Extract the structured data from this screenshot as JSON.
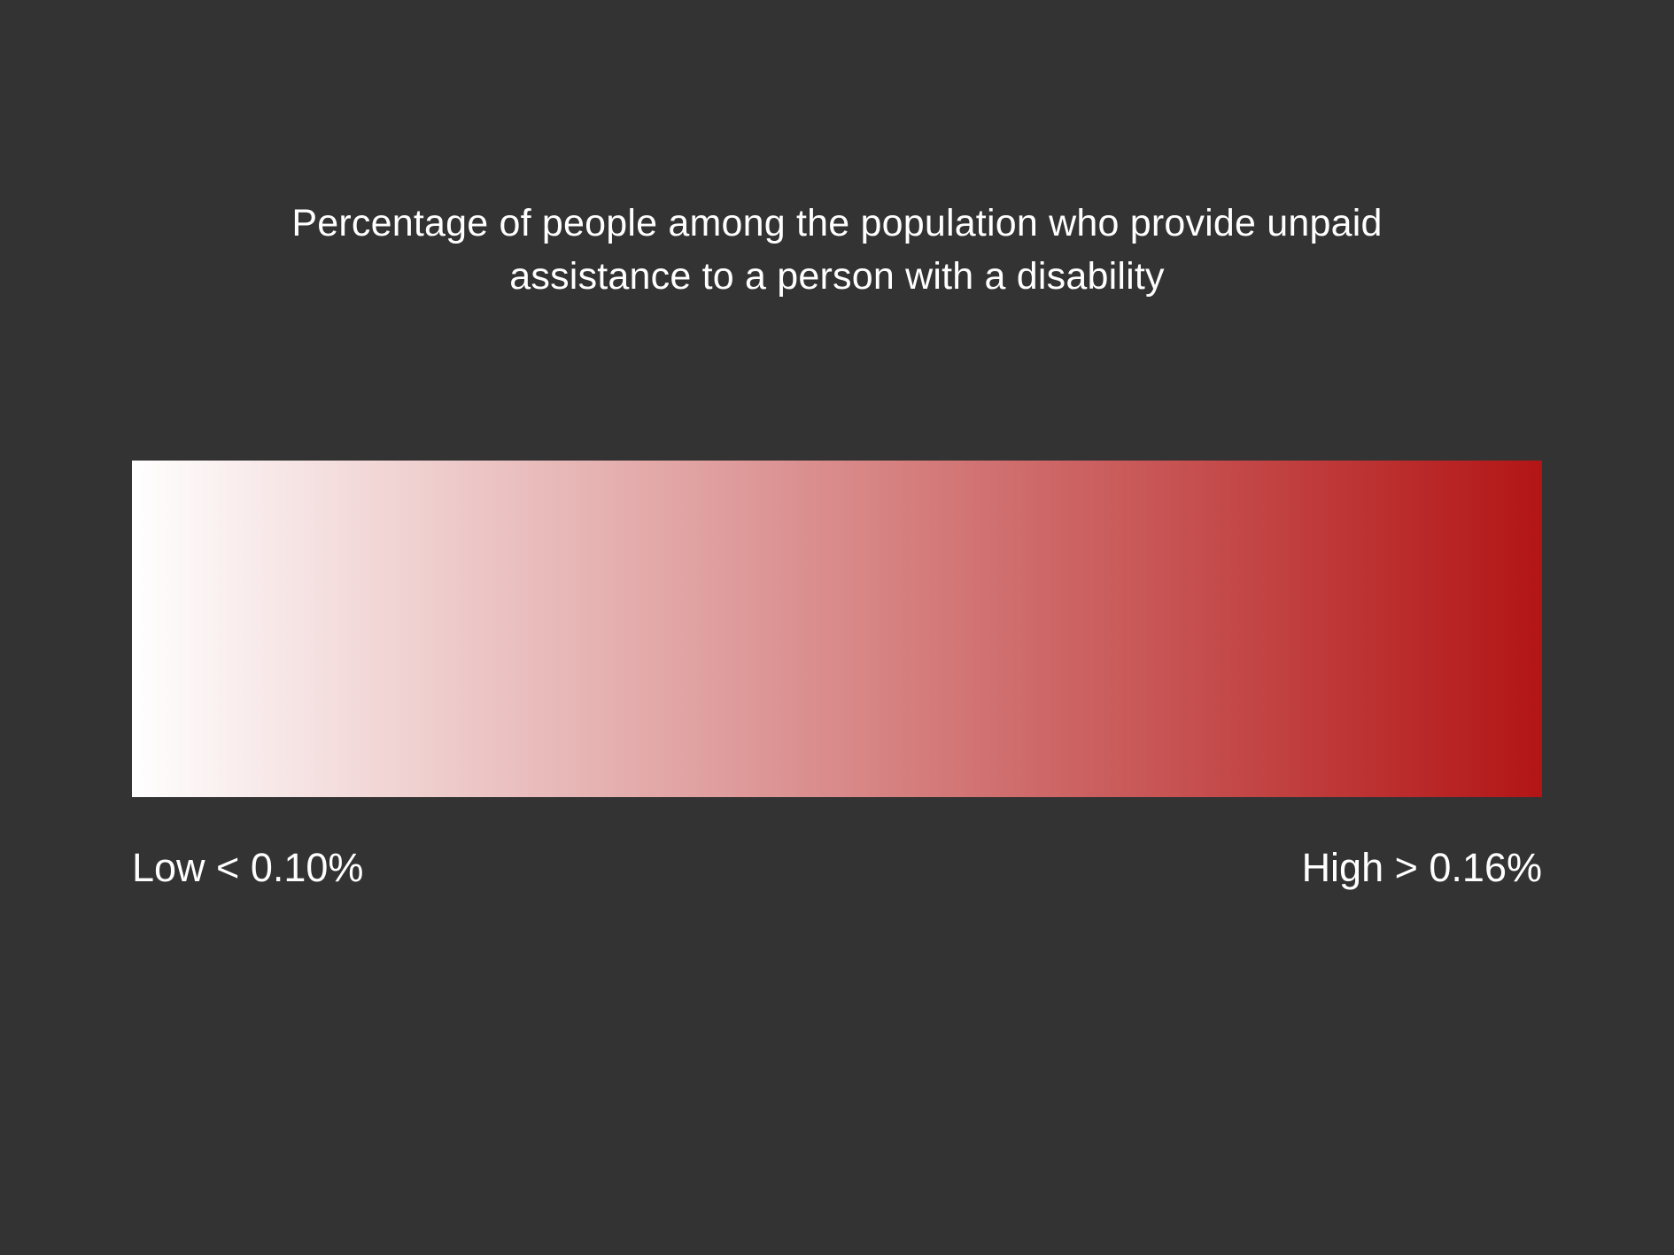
{
  "chart_data": {
    "type": "heatmap",
    "title_lines": [
      "Percentage of people among the population who provide unpaid",
      "assistance to a person with a disability"
    ],
    "legend": {
      "kind": "continuous-color-scale",
      "low_label": "Low < 0.10%",
      "high_label": "High > 0.16%",
      "low_value": 0.1,
      "high_value": 0.16,
      "unit": "%",
      "low_color": "#ffffff",
      "high_color": "#b31515"
    }
  },
  "colors": {
    "background": "#333333",
    "text": "#ffffff"
  }
}
